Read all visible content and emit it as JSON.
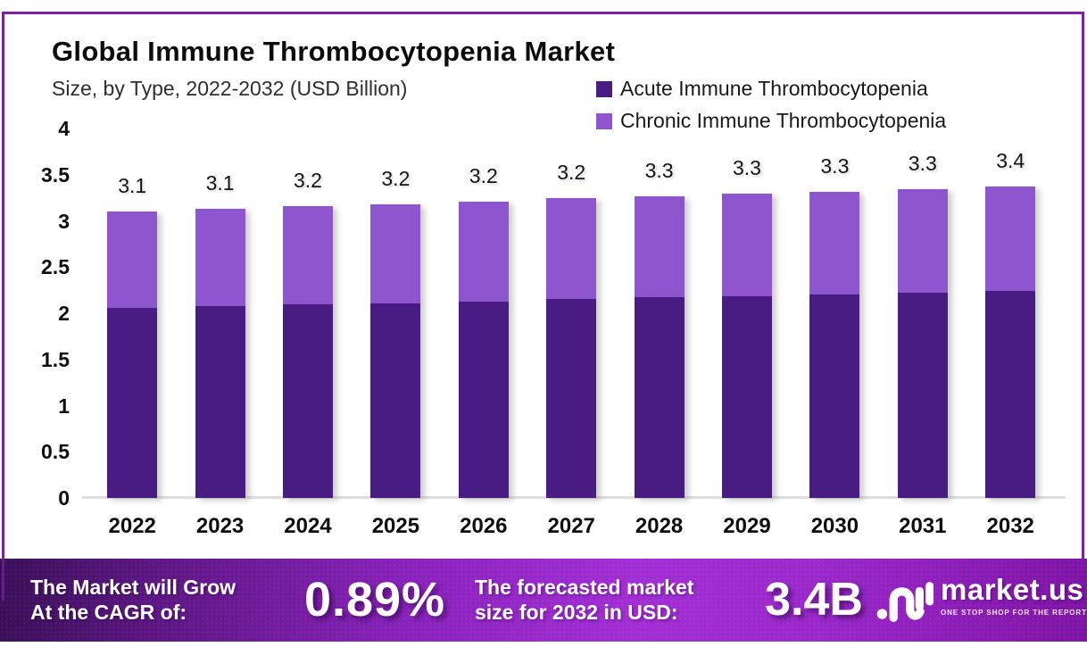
{
  "header": {
    "title": "Global Immune Thrombocytopenia Market",
    "subtitle": "Size, by Type, 2022-2032 (USD Billion)"
  },
  "chart_data": {
    "type": "bar",
    "stacked": true,
    "title": "Global Immune Thrombocytopenia Market",
    "subtitle": "Size, by Type, 2022-2032 (USD Billion)",
    "categories": [
      "2022",
      "2023",
      "2024",
      "2025",
      "2026",
      "2027",
      "2028",
      "2029",
      "2030",
      "2031",
      "2032"
    ],
    "series": [
      {
        "name": "Acute Immune Thrombocytopenia",
        "color": "#481C82",
        "values": [
          2.06,
          2.08,
          2.1,
          2.11,
          2.13,
          2.15,
          2.17,
          2.18,
          2.2,
          2.22,
          2.24
        ]
      },
      {
        "name": "Chronic Immune Thrombocytopenia",
        "color": "#8E55CE",
        "values": [
          1.04,
          1.05,
          1.06,
          1.07,
          1.08,
          1.09,
          1.09,
          1.11,
          1.11,
          1.12,
          1.13
        ]
      }
    ],
    "total_labels": [
      "3.1",
      "3.1",
      "3.2",
      "3.2",
      "3.2",
      "3.2",
      "3.3",
      "3.3",
      "3.3",
      "3.3",
      "3.4"
    ],
    "y_ticks": [
      0,
      0.5,
      1,
      1.5,
      2,
      2.5,
      3,
      3.5,
      4
    ],
    "y_tick_labels": [
      "0",
      "0.5",
      "1",
      "1.5",
      "2",
      "2.5",
      "3",
      "3.5",
      "4"
    ],
    "ylim": [
      0,
      4
    ],
    "xlabel": "",
    "ylabel": "",
    "grid": false,
    "legend_position": "top-right"
  },
  "banner": {
    "cagr_label_line1": "The Market will Grow",
    "cagr_label_line2": "At the CAGR of:",
    "cagr_value": "0.89%",
    "forecast_label_line1": "The forecasted market",
    "forecast_label_line2": "size for 2032 in USD:",
    "forecast_value": "3.4B",
    "brand": "market.us",
    "brand_tagline": "ONE STOP SHOP FOR THE REPORTS"
  },
  "colors": {
    "frame_border": "#7E1FA8",
    "acute_bar": "#481C82",
    "chronic_bar": "#8E55CE",
    "banner_gradient_start": "#3A0F57",
    "banner_gradient_mid": "#A22ED5",
    "banner_gradient_end": "#7E14A4",
    "baseline": "#dedede"
  }
}
